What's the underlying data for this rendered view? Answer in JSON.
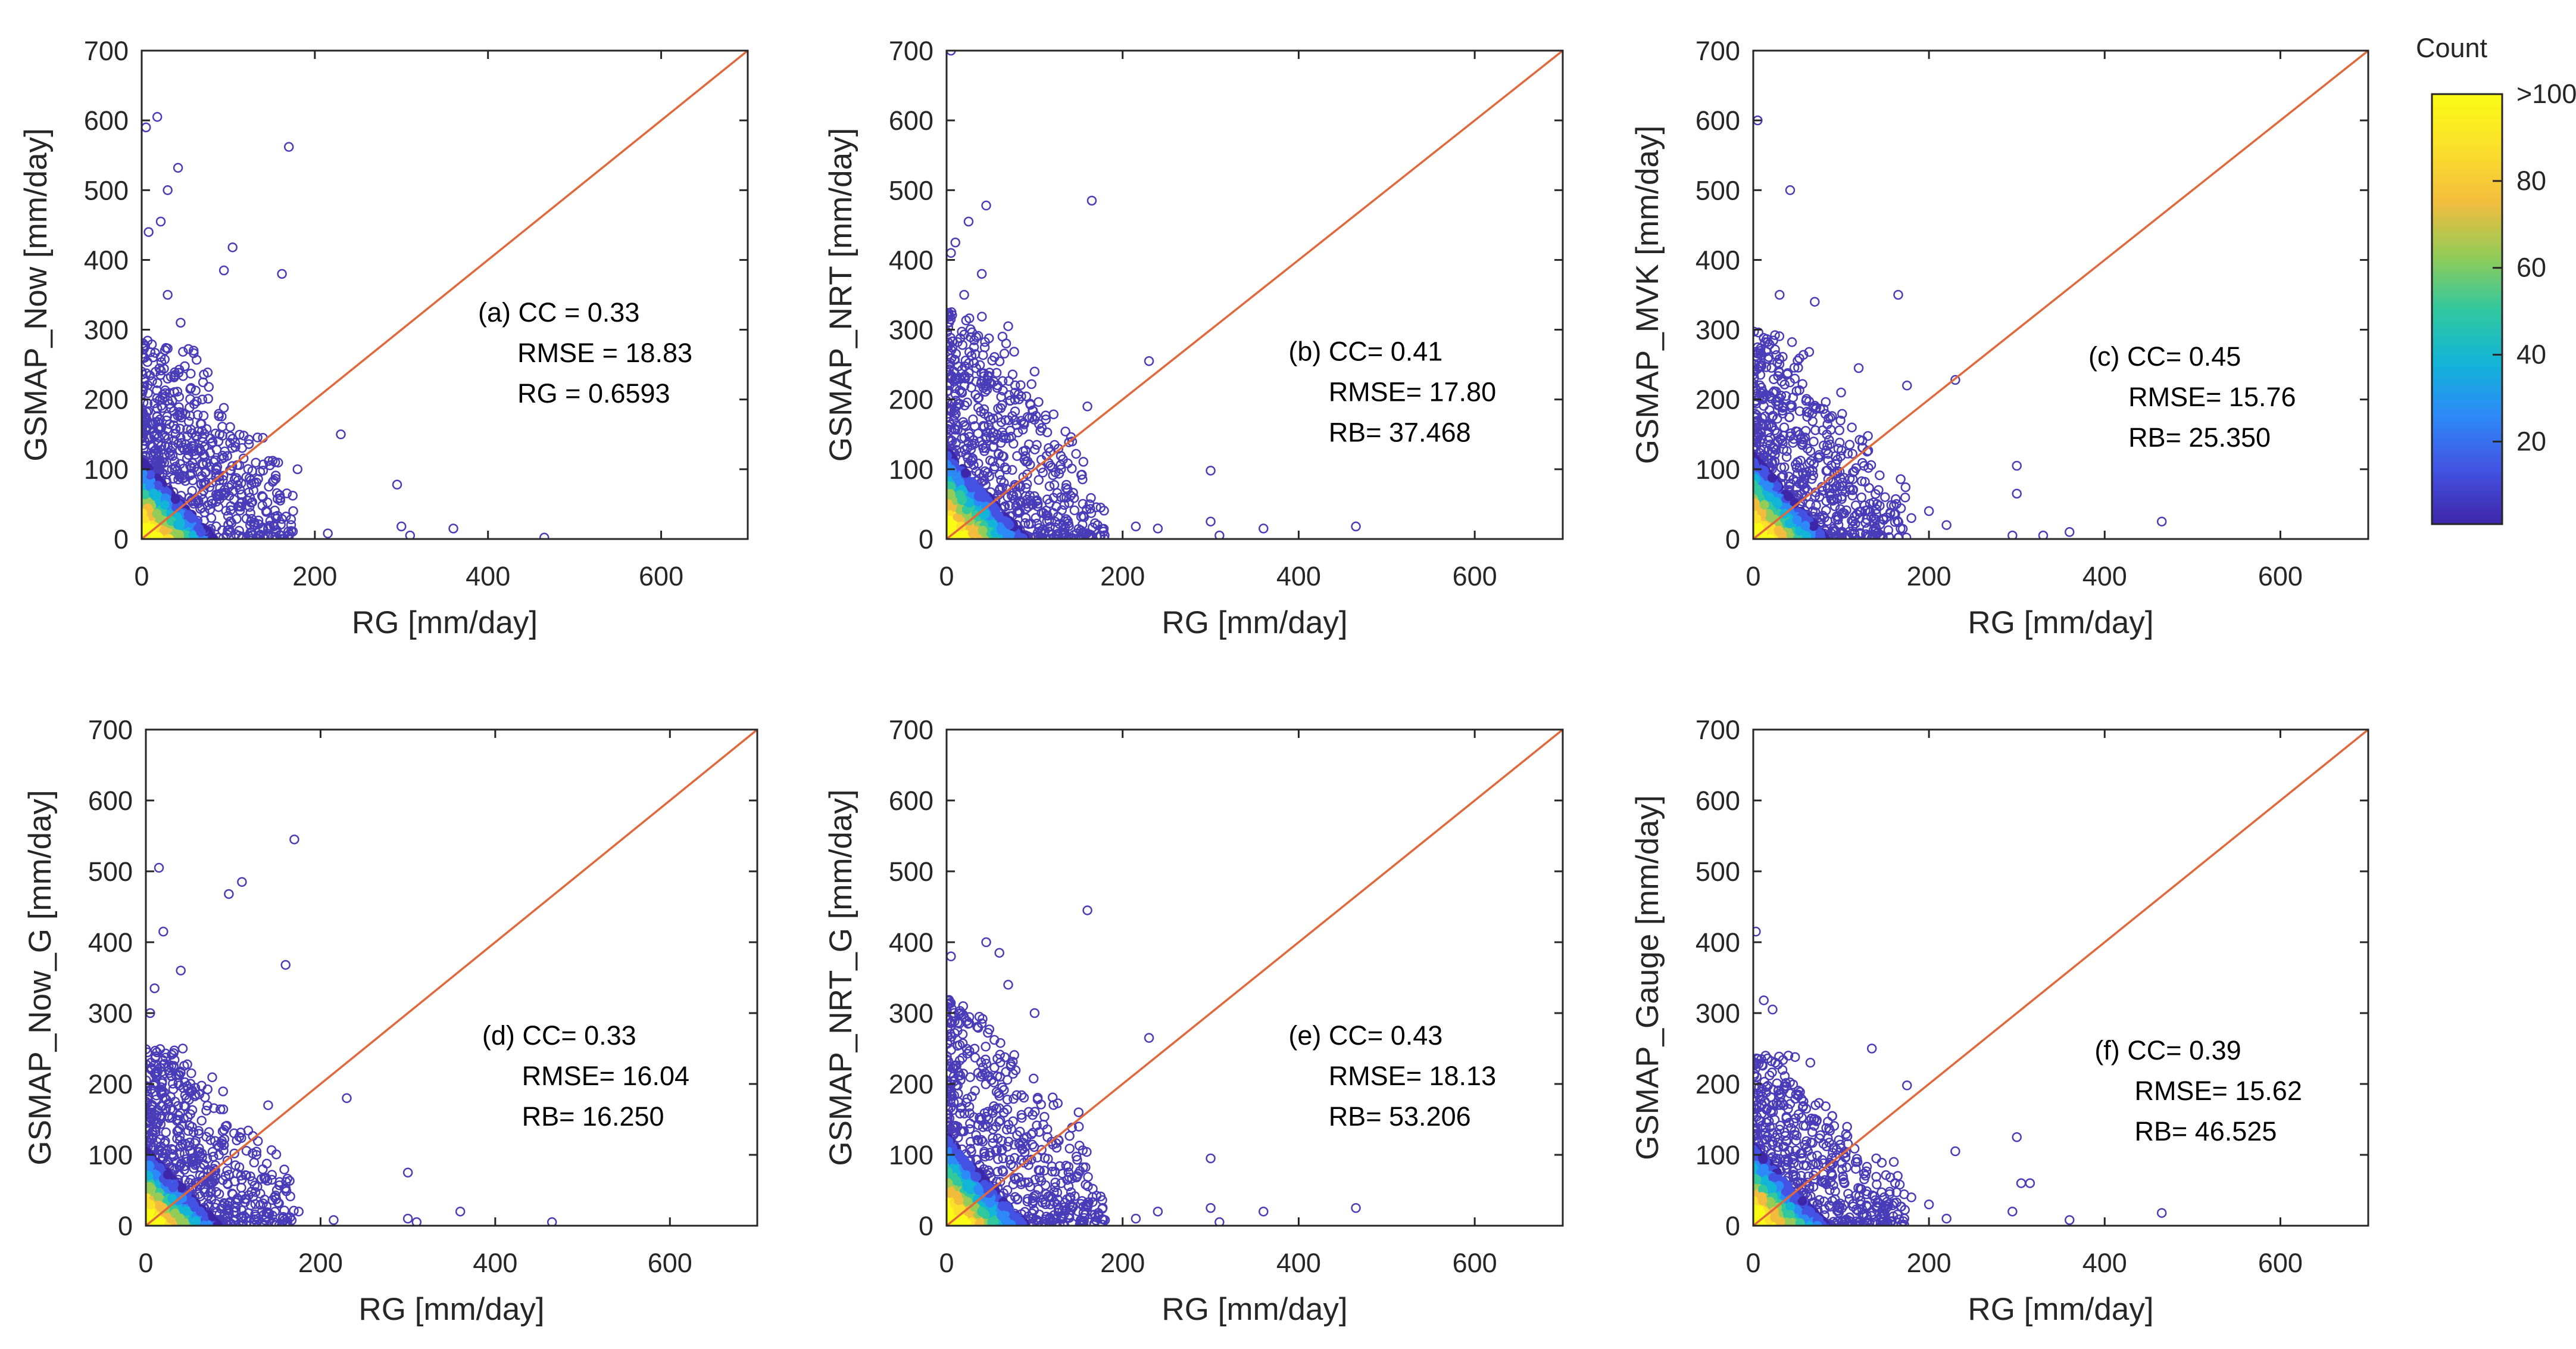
{
  "figure": {
    "colorbar": {
      "title": "Count",
      "ticks": [
        {
          "value": 20,
          "label": "20"
        },
        {
          "value": 40,
          "label": "40"
        },
        {
          "value": 60,
          "label": "60"
        },
        {
          "value": 80,
          "label": "80"
        },
        {
          "value": 100,
          "label": ">100"
        }
      ],
      "range": [
        1,
        100
      ],
      "colors": [
        "#3e26a8",
        "#4352e3",
        "#2d89f8",
        "#12b4d7",
        "#31c89e",
        "#95cb57",
        "#f2bd3d",
        "#fbe02a",
        "#f9fb15"
      ]
    },
    "line_color": "#e0683a",
    "marker_color": "#4a3bb8"
  },
  "chart_data": [
    {
      "type": "scatter",
      "xlabel": "RG [mm/day]",
      "ylabel": "GSMAP_Now [mm/day]",
      "xlim": [
        0,
        700
      ],
      "ylim": [
        0,
        700
      ],
      "xticks": [
        "0",
        "200",
        "400",
        "600"
      ],
      "yticks": [
        "0",
        "100",
        "200",
        "300",
        "400",
        "500",
        "600",
        "700"
      ],
      "one_to_one_line": [
        [
          0,
          0
        ],
        [
          700,
          700
        ]
      ],
      "annotation": [
        "(a) CC = 0.33",
        "RMSE = 18.83",
        "RG = 0.6593"
      ],
      "outliers": [
        [
          5,
          590
        ],
        [
          18,
          605
        ],
        [
          30,
          500
        ],
        [
          42,
          532
        ],
        [
          22,
          455
        ],
        [
          8,
          440
        ],
        [
          95,
          385
        ],
        [
          105,
          418
        ],
        [
          170,
          562
        ],
        [
          162,
          380
        ],
        [
          140,
          145
        ],
        [
          230,
          150
        ],
        [
          180,
          100
        ],
        [
          295,
          78
        ],
        [
          300,
          18
        ],
        [
          310,
          5
        ],
        [
          360,
          15
        ],
        [
          465,
          2
        ],
        [
          215,
          8
        ],
        [
          160,
          55
        ],
        [
          175,
          40
        ],
        [
          140,
          60
        ],
        [
          115,
          80
        ],
        [
          60,
          270
        ],
        [
          30,
          350
        ],
        [
          45,
          310
        ],
        [
          70,
          200
        ],
        [
          90,
          150
        ]
      ],
      "cloud": {
        "x_extent": 175,
        "y_extent": 285,
        "core_x": 60,
        "core_y": 80,
        "seed": 11
      }
    },
    {
      "type": "scatter",
      "xlabel": "RG [mm/day]",
      "ylabel": "GSMAP_NRT [mm/day]",
      "xlim": [
        0,
        700
      ],
      "ylim": [
        0,
        700
      ],
      "xticks": [
        "0",
        "200",
        "400",
        "600"
      ],
      "yticks": [
        "0",
        "100",
        "200",
        "300",
        "400",
        "500",
        "600",
        "700"
      ],
      "one_to_one_line": [
        [
          0,
          0
        ],
        [
          700,
          700
        ]
      ],
      "annotation": [
        "(b) CC= 0.41",
        "RMSE= 17.80",
        "RB= 37.468"
      ],
      "outliers": [
        [
          5,
          700
        ],
        [
          25,
          455
        ],
        [
          45,
          478
        ],
        [
          165,
          485
        ],
        [
          10,
          425
        ],
        [
          5,
          410
        ],
        [
          230,
          255
        ],
        [
          160,
          190
        ],
        [
          130,
          100
        ],
        [
          300,
          98
        ],
        [
          300,
          25
        ],
        [
          310,
          5
        ],
        [
          360,
          15
        ],
        [
          465,
          18
        ],
        [
          240,
          15
        ],
        [
          215,
          18
        ],
        [
          175,
          45
        ],
        [
          130,
          60
        ],
        [
          100,
          240
        ],
        [
          70,
          305
        ],
        [
          40,
          380
        ],
        [
          20,
          350
        ]
      ],
      "cloud": {
        "x_extent": 180,
        "y_extent": 330,
        "core_x": 65,
        "core_y": 90,
        "seed": 23
      }
    },
    {
      "type": "scatter",
      "xlabel": "RG [mm/day]",
      "ylabel": "GSMAP_MVK [mm/day]",
      "xlim": [
        0,
        700
      ],
      "ylim": [
        0,
        700
      ],
      "xticks": [
        "0",
        "200",
        "400",
        "600"
      ],
      "yticks": [
        "0",
        "100",
        "200",
        "300",
        "400",
        "500",
        "600",
        "700"
      ],
      "one_to_one_line": [
        [
          0,
          0
        ],
        [
          700,
          700
        ]
      ],
      "annotation": [
        "(c) CC= 0.45",
        "RMSE= 15.76",
        "RB= 25.350"
      ],
      "outliers": [
        [
          5,
          600
        ],
        [
          42,
          500
        ],
        [
          30,
          350
        ],
        [
          70,
          340
        ],
        [
          165,
          350
        ],
        [
          230,
          228
        ],
        [
          175,
          220
        ],
        [
          300,
          105
        ],
        [
          300,
          65
        ],
        [
          295,
          5
        ],
        [
          330,
          5
        ],
        [
          360,
          10
        ],
        [
          465,
          25
        ],
        [
          220,
          20
        ],
        [
          200,
          40
        ],
        [
          180,
          30
        ],
        [
          150,
          60
        ],
        [
          120,
          245
        ],
        [
          100,
          210
        ]
      ],
      "cloud": {
        "x_extent": 175,
        "y_extent": 300,
        "core_x": 60,
        "core_y": 85,
        "seed": 37
      }
    },
    {
      "type": "scatter",
      "xlabel": "RG [mm/day]",
      "ylabel": "GSMAP_Now_G [mm/day]",
      "xlim": [
        0,
        700
      ],
      "ylim": [
        0,
        700
      ],
      "xticks": [
        "0",
        "200",
        "400",
        "600"
      ],
      "yticks": [
        "0",
        "100",
        "200",
        "300",
        "400",
        "500",
        "600",
        "700"
      ],
      "one_to_one_line": [
        [
          0,
          0
        ],
        [
          700,
          700
        ]
      ],
      "annotation": [
        "(d) CC= 0.33",
        "RMSE= 16.04",
        "RB= 16.250"
      ],
      "outliers": [
        [
          15,
          505
        ],
        [
          95,
          468
        ],
        [
          110,
          485
        ],
        [
          170,
          545
        ],
        [
          20,
          415
        ],
        [
          40,
          360
        ],
        [
          160,
          368
        ],
        [
          10,
          335
        ],
        [
          5,
          300
        ],
        [
          230,
          180
        ],
        [
          140,
          170
        ],
        [
          300,
          75
        ],
        [
          300,
          10
        ],
        [
          310,
          5
        ],
        [
          360,
          20
        ],
        [
          465,
          5
        ],
        [
          215,
          8
        ],
        [
          175,
          20
        ],
        [
          150,
          50
        ]
      ],
      "cloud": {
        "x_extent": 170,
        "y_extent": 250,
        "core_x": 60,
        "core_y": 75,
        "seed": 51
      }
    },
    {
      "type": "scatter",
      "xlabel": "RG [mm/day]",
      "ylabel": "GSMAP_NRT_G [mm/day]",
      "xlim": [
        0,
        700
      ],
      "ylim": [
        0,
        700
      ],
      "xticks": [
        "0",
        "200",
        "400",
        "600"
      ],
      "yticks": [
        "0",
        "100",
        "200",
        "300",
        "400",
        "500",
        "600",
        "700"
      ],
      "one_to_one_line": [
        [
          0,
          0
        ],
        [
          700,
          700
        ]
      ],
      "annotation": [
        "(e) CC= 0.43",
        "RMSE= 18.13",
        "RB= 53.206"
      ],
      "outliers": [
        [
          160,
          445
        ],
        [
          5,
          380
        ],
        [
          45,
          400
        ],
        [
          60,
          385
        ],
        [
          230,
          265
        ],
        [
          150,
          160
        ],
        [
          125,
          110
        ],
        [
          300,
          95
        ],
        [
          300,
          25
        ],
        [
          310,
          5
        ],
        [
          360,
          20
        ],
        [
          465,
          25
        ],
        [
          240,
          20
        ],
        [
          215,
          10
        ],
        [
          180,
          8
        ],
        [
          160,
          30
        ],
        [
          140,
          40
        ],
        [
          100,
          300
        ],
        [
          70,
          340
        ]
      ],
      "cloud": {
        "x_extent": 180,
        "y_extent": 320,
        "core_x": 65,
        "core_y": 90,
        "seed": 67
      }
    },
    {
      "type": "scatter",
      "xlabel": "RG [mm/day]",
      "ylabel": "GSMAP_Gauge [mm/day]",
      "xlim": [
        0,
        700
      ],
      "ylim": [
        0,
        700
      ],
      "xticks": [
        "0",
        "200",
        "400",
        "600"
      ],
      "yticks": [
        "0",
        "100",
        "200",
        "300",
        "400",
        "500",
        "600",
        "700"
      ],
      "one_to_one_line": [
        [
          0,
          0
        ],
        [
          700,
          700
        ]
      ],
      "annotation": [
        "(f) CC= 0.39",
        "RMSE= 15.62",
        "RB= 46.525"
      ],
      "outliers": [
        [
          3,
          415
        ],
        [
          12,
          318
        ],
        [
          22,
          305
        ],
        [
          135,
          250
        ],
        [
          175,
          198
        ],
        [
          230,
          105
        ],
        [
          300,
          125
        ],
        [
          305,
          60
        ],
        [
          315,
          60
        ],
        [
          295,
          20
        ],
        [
          360,
          8
        ],
        [
          465,
          18
        ],
        [
          220,
          10
        ],
        [
          200,
          30
        ],
        [
          180,
          40
        ],
        [
          160,
          90
        ],
        [
          140,
          95
        ],
        [
          65,
          230
        ],
        [
          40,
          240
        ]
      ],
      "cloud": {
        "x_extent": 175,
        "y_extent": 240,
        "core_x": 60,
        "core_y": 80,
        "seed": 79
      }
    }
  ]
}
